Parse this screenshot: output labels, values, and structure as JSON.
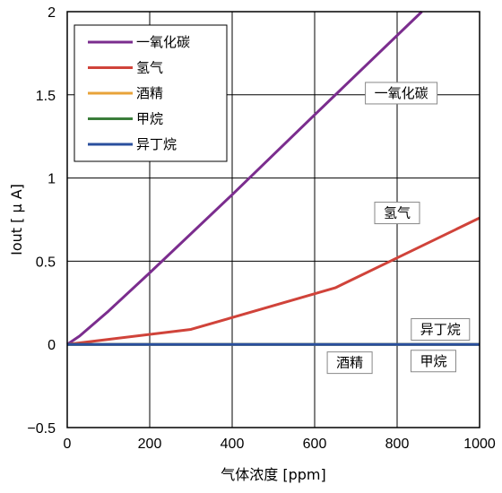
{
  "chart_data": {
    "type": "line",
    "xlabel": "气体浓度 [ppm]",
    "ylabel": "Iout [ μ A]",
    "xlim": [
      0,
      1000
    ],
    "ylim": [
      -0.5,
      2
    ],
    "x_ticks": [
      0,
      200,
      400,
      600,
      800,
      1000
    ],
    "y_ticks": [
      -0.5,
      0,
      0.5,
      1,
      1.5,
      2
    ],
    "x_tick_labels": [
      "0",
      "200",
      "400",
      "600",
      "800",
      "1000"
    ],
    "y_tick_labels": [
      "−0.5",
      "0",
      "0.5",
      "1",
      "1.5",
      "2"
    ],
    "grid": true,
    "legend_position": "top-left",
    "series": [
      {
        "name": "一氧化碳",
        "color": "#7b2d8e",
        "points": [
          [
            0,
            0
          ],
          [
            30,
            0.05
          ],
          [
            100,
            0.2
          ],
          [
            200,
            0.43
          ],
          [
            400,
            0.9
          ],
          [
            600,
            1.38
          ],
          [
            860,
            2.0
          ]
        ]
      },
      {
        "name": "氢气",
        "color": "#d0433a",
        "points": [
          [
            0,
            0
          ],
          [
            100,
            0.03
          ],
          [
            300,
            0.09
          ],
          [
            650,
            0.34
          ],
          [
            800,
            0.52
          ],
          [
            1000,
            0.76
          ]
        ]
      },
      {
        "name": "酒精",
        "color": "#e8a33a",
        "points": [
          [
            0,
            0
          ],
          [
            1000,
            0
          ]
        ]
      },
      {
        "name": "甲烷",
        "color": "#3a7d3a",
        "points": [
          [
            0,
            0
          ],
          [
            1000,
            0
          ]
        ]
      },
      {
        "name": "异丁烷",
        "color": "#2a4f9e",
        "points": [
          [
            0,
            0
          ],
          [
            1000,
            0
          ]
        ]
      }
    ],
    "annotations": [
      {
        "text": "一氧化碳",
        "x": 810,
        "y": 1.51
      },
      {
        "text": "氢气",
        "x": 800,
        "y": 0.79
      },
      {
        "text": "异丁烷",
        "x": 905,
        "y": 0.09
      },
      {
        "text": "酒精",
        "x": 685,
        "y": -0.11
      },
      {
        "text": "甲烷",
        "x": 888,
        "y": -0.1
      }
    ]
  }
}
